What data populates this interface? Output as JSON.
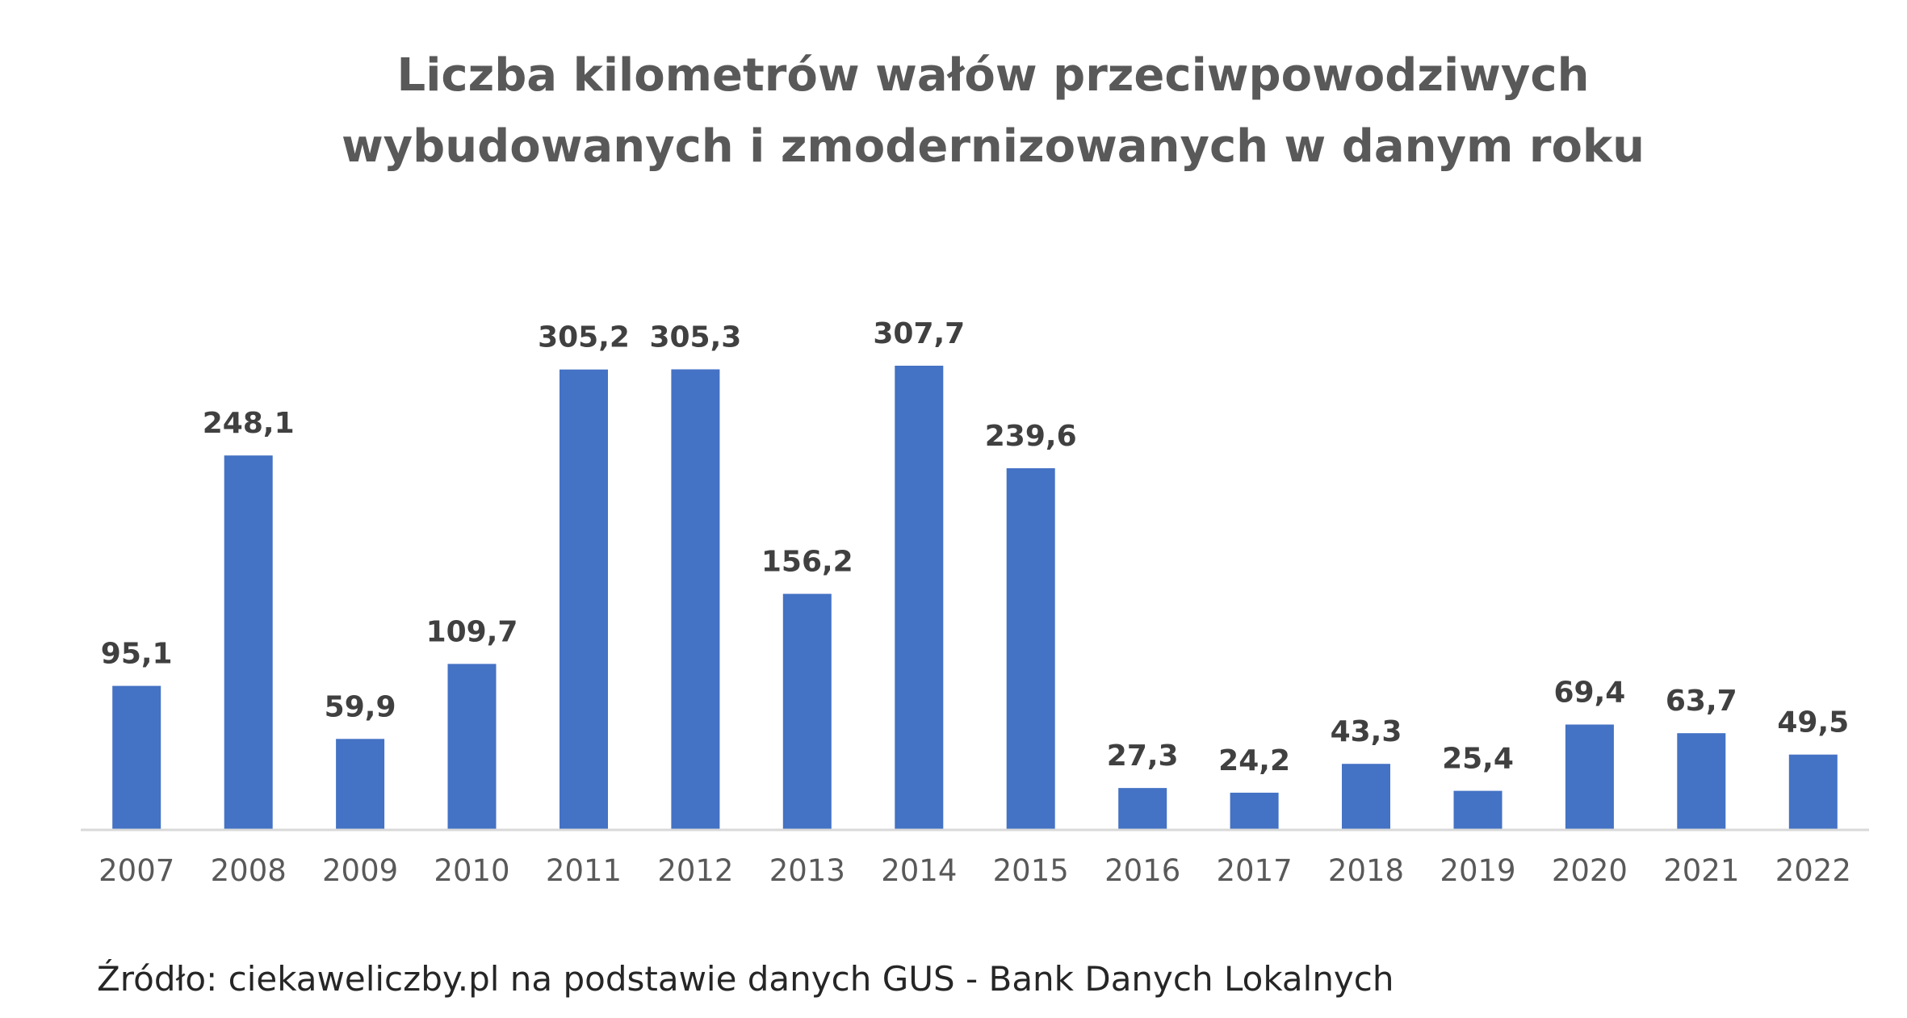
{
  "chart_data": {
    "type": "bar",
    "title_lines": [
      "Liczba kilometrów wałów przeciwpowodziwych",
      "wybudowanych i zmodernizowanych w danym roku"
    ],
    "categories": [
      "2007",
      "2008",
      "2009",
      "2010",
      "2011",
      "2012",
      "2013",
      "2014",
      "2015",
      "2016",
      "2017",
      "2018",
      "2019",
      "2020",
      "2021",
      "2022"
    ],
    "values": [
      95.1,
      248.1,
      59.9,
      109.7,
      305.2,
      305.3,
      156.2,
      307.7,
      239.6,
      27.3,
      24.2,
      43.3,
      25.4,
      69.4,
      63.7,
      49.5
    ],
    "value_labels": [
      "95,1",
      "248,1",
      "59,9",
      "109,7",
      "305,2",
      "305,3",
      "156,2",
      "307,7",
      "239,6",
      "27,3",
      "24,2",
      "43,3",
      "25,4",
      "69,4",
      "63,7",
      "49,5"
    ],
    "xlabel": "",
    "ylabel": "",
    "ylim": [
      0,
      307.7
    ],
    "grid": false,
    "y_axis_visible": false,
    "bar_color": "#4472c4",
    "axis_color": "#d9d9d9"
  },
  "source": "Źródło: ciekaweliczby.pl na podstawie danych GUS - Bank Danych Lokalnych"
}
